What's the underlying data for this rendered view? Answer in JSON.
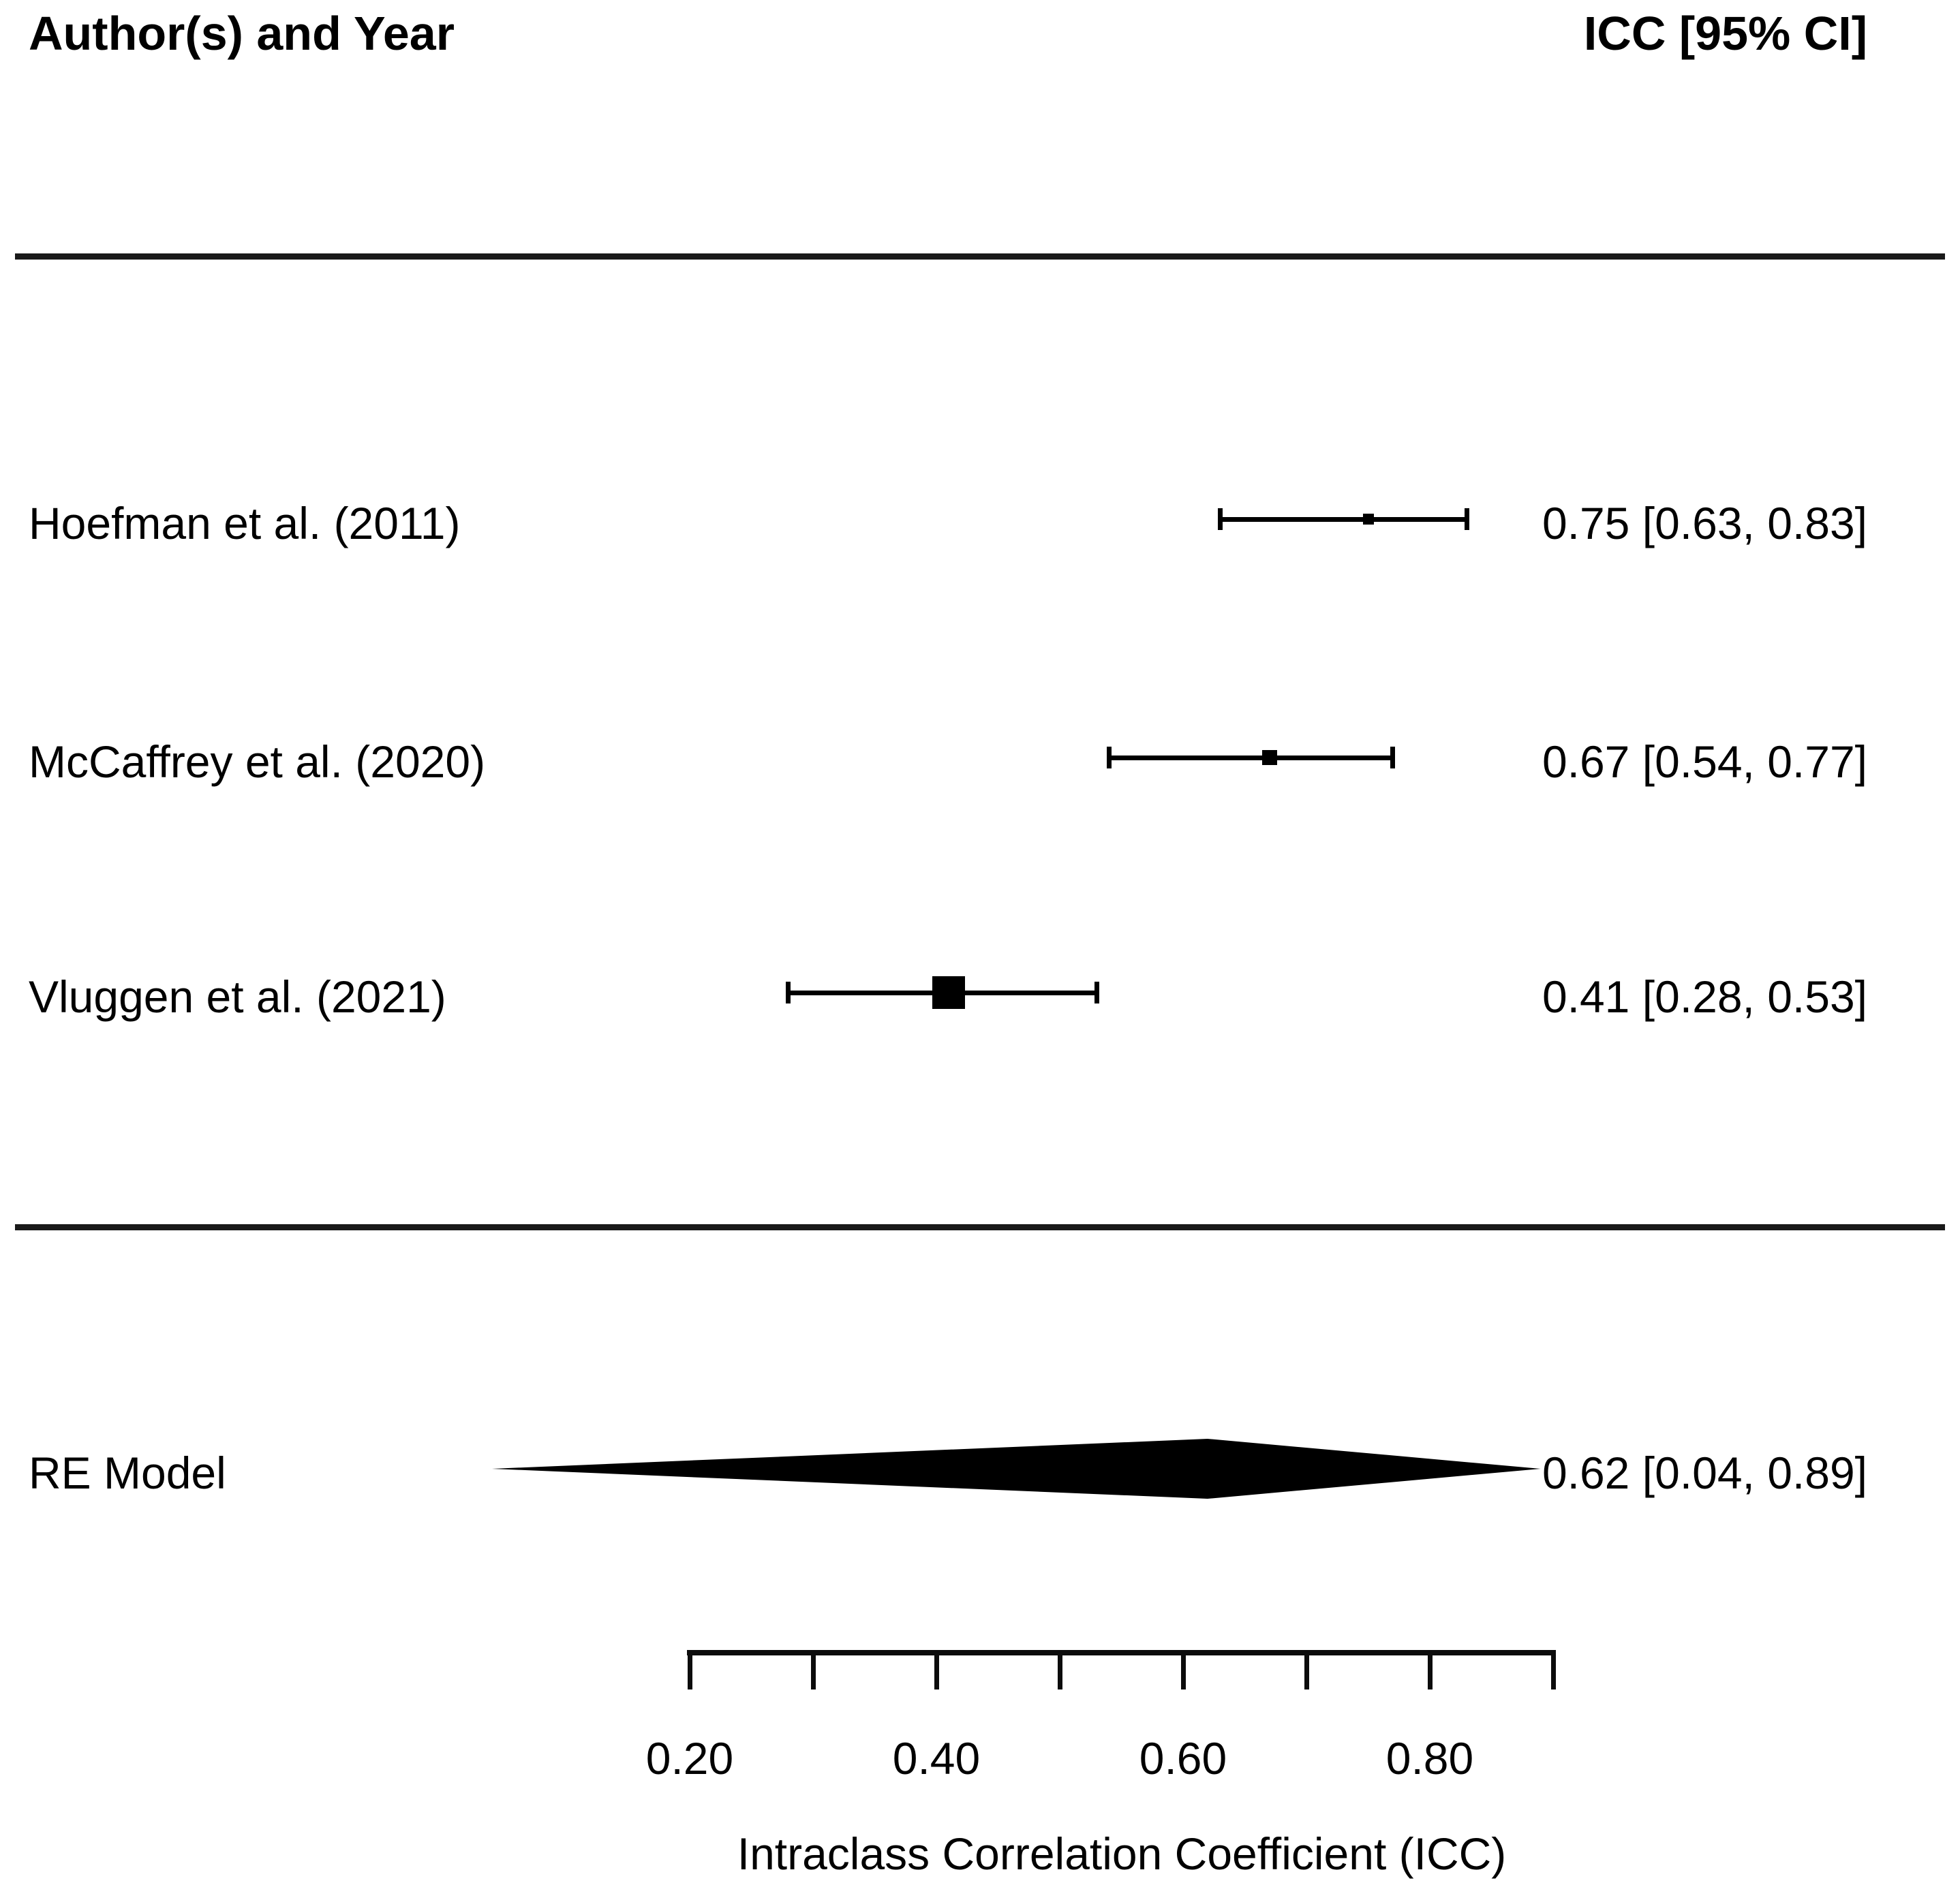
{
  "header": {
    "left": "Author(s) and Year",
    "right": "ICC [95% CI]"
  },
  "colors": {
    "ink": "#000000"
  },
  "chart_data": {
    "type": "forest",
    "title": "",
    "xlabel": "Intraclass Correlation Coefficient (ICC)",
    "xlim": [
      0.2,
      0.9
    ],
    "x_ticks": [
      0.2,
      0.3,
      0.4,
      0.5,
      0.6,
      0.7,
      0.8,
      0.9
    ],
    "x_tick_labels": [
      "0.20",
      "",
      "0.40",
      "",
      "0.60",
      "",
      "0.80",
      ""
    ],
    "grid": false,
    "studies": [
      {
        "label": "Hoefman et al. (2011)",
        "icc": 0.75,
        "ci_low": 0.63,
        "ci_high": 0.83,
        "annotation": "0.75 [0.63, 0.83]",
        "marker_px": 16
      },
      {
        "label": "McCaffrey et al. (2020)",
        "icc": 0.67,
        "ci_low": 0.54,
        "ci_high": 0.77,
        "annotation": "0.67 [0.54, 0.77]",
        "marker_px": 22
      },
      {
        "label": "Vluggen et al. (2021)",
        "icc": 0.41,
        "ci_low": 0.28,
        "ci_high": 0.53,
        "annotation": "0.41 [0.28, 0.53]",
        "marker_px": 48
      }
    ],
    "summary": {
      "label": "RE Model",
      "icc": 0.62,
      "ci_low": 0.04,
      "ci_high": 0.89,
      "annotation": "0.62 [0.04, 0.89]"
    }
  }
}
